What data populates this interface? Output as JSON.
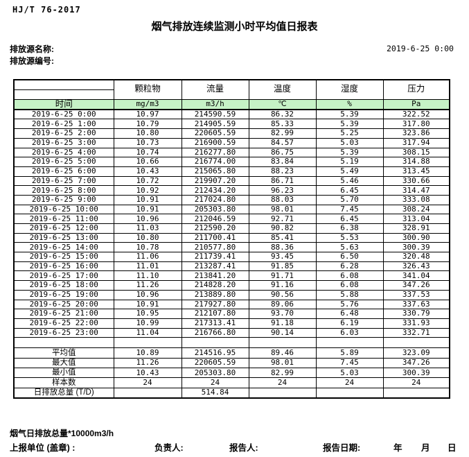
{
  "header": {
    "standard": "HJ/T  76-2017",
    "title": "烟气排放连续监测小时平均值日报表",
    "source_name_label": "排放源名称:",
    "source_id_label": "排放源编号:",
    "datetime": "2019-6-25  0:00"
  },
  "table": {
    "time_header": "时间",
    "columns": [
      {
        "name": "颗粒物",
        "unit": "mg/m3"
      },
      {
        "name": "流量",
        "unit": "m3/h"
      },
      {
        "name": "温度",
        "unit": "℃"
      },
      {
        "name": "湿度",
        "unit": "%"
      },
      {
        "name": "压力",
        "unit": "Pa"
      }
    ],
    "rows": [
      {
        "time": "2019-6-25  0:00",
        "values": [
          "10.97",
          "214590.59",
          "86.32",
          "5.39",
          "322.52"
        ]
      },
      {
        "time": "2019-6-25  1:00",
        "values": [
          "10.79",
          "214905.59",
          "85.33",
          "5.39",
          "317.80"
        ]
      },
      {
        "time": "2019-6-25  2:00",
        "values": [
          "10.80",
          "220605.59",
          "82.99",
          "5.25",
          "323.86"
        ]
      },
      {
        "time": "2019-6-25  3:00",
        "values": [
          "10.73",
          "216900.59",
          "84.57",
          "5.03",
          "317.94"
        ]
      },
      {
        "time": "2019-6-25  4:00",
        "values": [
          "10.74",
          "216277.80",
          "86.75",
          "5.39",
          "308.15"
        ]
      },
      {
        "time": "2019-6-25  5:00",
        "values": [
          "10.66",
          "216774.00",
          "83.84",
          "5.19",
          "314.88"
        ]
      },
      {
        "time": "2019-6-25  6:00",
        "values": [
          "10.43",
          "215065.80",
          "88.23",
          "5.49",
          "313.45"
        ]
      },
      {
        "time": "2019-6-25  7:00",
        "values": [
          "10.72",
          "219907.20",
          "86.71",
          "5.46",
          "330.66"
        ]
      },
      {
        "time": "2019-6-25  8:00",
        "values": [
          "10.92",
          "212434.20",
          "96.23",
          "6.45",
          "314.47"
        ]
      },
      {
        "time": "2019-6-25  9:00",
        "values": [
          "10.91",
          "217024.80",
          "88.03",
          "5.70",
          "333.08"
        ]
      },
      {
        "time": "2019-6-25 10:00",
        "values": [
          "10.91",
          "205303.80",
          "98.01",
          "7.45",
          "308.24"
        ]
      },
      {
        "time": "2019-6-25 11:00",
        "values": [
          "10.96",
          "212046.59",
          "92.71",
          "6.45",
          "313.04"
        ]
      },
      {
        "time": "2019-6-25 12:00",
        "values": [
          "11.03",
          "212590.20",
          "90.82",
          "6.38",
          "328.91"
        ]
      },
      {
        "time": "2019-6-25 13:00",
        "values": [
          "10.80",
          "211700.41",
          "85.41",
          "5.53",
          "300.90"
        ]
      },
      {
        "time": "2019-6-25 14:00",
        "values": [
          "10.78",
          "210577.80",
          "88.36",
          "5.63",
          "300.39"
        ]
      },
      {
        "time": "2019-6-25 15:00",
        "values": [
          "11.06",
          "211739.41",
          "93.45",
          "6.50",
          "320.48"
        ]
      },
      {
        "time": "2019-6-25 16:00",
        "values": [
          "11.01",
          "213287.41",
          "91.85",
          "6.28",
          "326.43"
        ]
      },
      {
        "time": "2019-6-25 17:00",
        "values": [
          "11.10",
          "213841.20",
          "91.71",
          "6.08",
          "341.04"
        ]
      },
      {
        "time": "2019-6-25 18:00",
        "values": [
          "11.26",
          "214828.20",
          "91.16",
          "6.08",
          "347.26"
        ]
      },
      {
        "time": "2019-6-25 19:00",
        "values": [
          "10.96",
          "213889.80",
          "90.56",
          "5.88",
          "337.53"
        ]
      },
      {
        "time": "2019-6-25 20:00",
        "values": [
          "10.91",
          "217927.80",
          "89.06",
          "5.76",
          "337.63"
        ]
      },
      {
        "time": "2019-6-25 21:00",
        "values": [
          "10.95",
          "212107.80",
          "93.70",
          "6.48",
          "330.79"
        ]
      },
      {
        "time": "2019-6-25 22:00",
        "values": [
          "10.99",
          "217313.41",
          "91.18",
          "6.19",
          "331.93"
        ]
      },
      {
        "time": "2019-6-25 23:00",
        "values": [
          "11.04",
          "216766.80",
          "90.14",
          "6.03",
          "332.71"
        ]
      }
    ],
    "summary": [
      {
        "label": "平均值",
        "values": [
          "10.89",
          "214516.95",
          "89.46",
          "5.89",
          "323.09"
        ]
      },
      {
        "label": "最大值",
        "values": [
          "11.26",
          "220605.59",
          "98.01",
          "7.45",
          "347.26"
        ]
      },
      {
        "label": "最小值",
        "values": [
          "10.43",
          "205303.80",
          "82.99",
          "5.03",
          "300.39"
        ]
      },
      {
        "label": "样本数",
        "values": [
          "24",
          "24",
          "24",
          "24",
          "24"
        ]
      },
      {
        "label": "日排放总量 (T/D)",
        "values": [
          "",
          "514.84",
          "",
          "",
          ""
        ]
      }
    ]
  },
  "footer": {
    "note": "烟气日排放总量*10000m3/h",
    "report_unit_label": "上报单位 (盖章) :",
    "responsible_label": "负责人:",
    "reporter_label": "报告人:",
    "report_date_label": "报告日期:",
    "year_label": "年",
    "month_label": "月",
    "day_label": "日"
  },
  "colors": {
    "header_green": "#c6f2c6",
    "border": "#000000"
  }
}
